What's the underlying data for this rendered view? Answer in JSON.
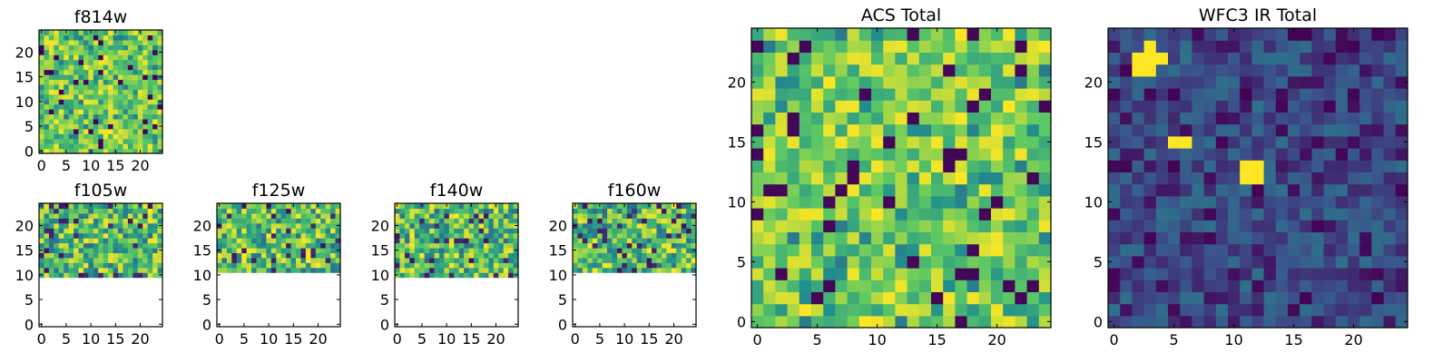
{
  "colormap": {
    "name": "viridis",
    "stops": [
      "#440154",
      "#3b528b",
      "#21918c",
      "#5ec962",
      "#fde725"
    ]
  },
  "chart_data": [
    {
      "type": "heatmap",
      "title": "f814w",
      "grid_size": 25,
      "value_range": [
        0,
        1
      ],
      "fill_rows_from": 0,
      "level": "high",
      "xlim": [
        -0.5,
        24.5
      ],
      "ylim": [
        -0.5,
        24.5
      ],
      "xticks": [
        "0",
        "5",
        "10",
        "15",
        "20"
      ],
      "yticks": [
        "0",
        "5",
        "10",
        "15",
        "20"
      ]
    },
    {
      "type": "heatmap",
      "title": "f105w",
      "grid_size": 25,
      "value_range": [
        0,
        1
      ],
      "fill_rows_from": 10,
      "level": "mid-high",
      "xlim": [
        -0.5,
        24.5
      ],
      "ylim": [
        -0.5,
        24.5
      ],
      "xticks": [
        "0",
        "5",
        "10",
        "15",
        "20"
      ],
      "yticks": [
        "0",
        "5",
        "10",
        "15",
        "20"
      ]
    },
    {
      "type": "heatmap",
      "title": "f125w",
      "grid_size": 25,
      "value_range": [
        0,
        1
      ],
      "fill_rows_from": 11,
      "level": "mid-high",
      "xlim": [
        -0.5,
        24.5
      ],
      "ylim": [
        -0.5,
        24.5
      ],
      "xticks": [
        "0",
        "5",
        "10",
        "15",
        "20"
      ],
      "yticks": [
        "0",
        "5",
        "10",
        "15",
        "20"
      ]
    },
    {
      "type": "heatmap",
      "title": "f140w",
      "grid_size": 25,
      "value_range": [
        0,
        1
      ],
      "fill_rows_from": 10,
      "level": "mid-high",
      "xlim": [
        -0.5,
        24.5
      ],
      "ylim": [
        -0.5,
        24.5
      ],
      "xticks": [
        "0",
        "5",
        "10",
        "15",
        "20"
      ],
      "yticks": [
        "0",
        "5",
        "10",
        "15",
        "20"
      ]
    },
    {
      "type": "heatmap",
      "title": "f160w",
      "grid_size": 25,
      "value_range": [
        0,
        1
      ],
      "fill_rows_from": 11,
      "level": "mid-high",
      "xlim": [
        -0.5,
        24.5
      ],
      "ylim": [
        -0.5,
        24.5
      ],
      "xticks": [
        "0",
        "5",
        "10",
        "15",
        "20"
      ],
      "yticks": [
        "0",
        "5",
        "10",
        "15",
        "20"
      ]
    },
    {
      "type": "heatmap",
      "title": "ACS Total",
      "grid_size": 25,
      "value_range": [
        0,
        1
      ],
      "fill_rows_from": 0,
      "level": "high",
      "xlim": [
        -0.5,
        24.5
      ],
      "ylim": [
        -0.5,
        24.5
      ],
      "xticks": [
        "0",
        "5",
        "10",
        "15",
        "20"
      ],
      "yticks": [
        "0",
        "5",
        "10",
        "15",
        "20"
      ]
    },
    {
      "type": "heatmap",
      "title": "WFC3 IR Total",
      "grid_size": 25,
      "value_range": [
        0,
        1
      ],
      "fill_rows_from": 0,
      "level": "low",
      "bright_pixels": [
        [
          2,
          21
        ],
        [
          3,
          21
        ],
        [
          2,
          22
        ],
        [
          3,
          22
        ],
        [
          3,
          23
        ],
        [
          4,
          22
        ],
        [
          5,
          15
        ],
        [
          6,
          15
        ],
        [
          11,
          12
        ],
        [
          12,
          12
        ],
        [
          11,
          13
        ],
        [
          12,
          13
        ]
      ],
      "xlim": [
        -0.5,
        24.5
      ],
      "ylim": [
        -0.5,
        24.5
      ],
      "xticks": [
        "0",
        "5",
        "10",
        "15",
        "20"
      ],
      "yticks": [
        "0",
        "5",
        "10",
        "15",
        "20"
      ]
    }
  ]
}
